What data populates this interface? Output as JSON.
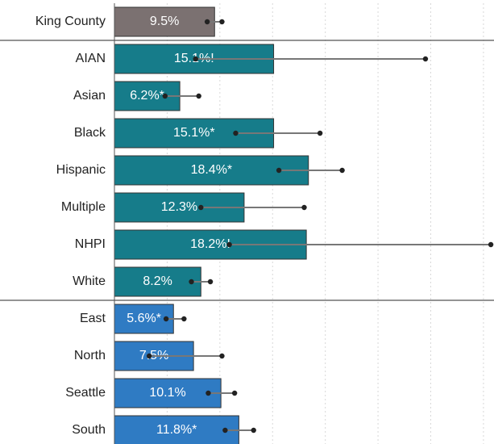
{
  "chart_data": {
    "type": "bar",
    "orientation": "horizontal",
    "xlim": [
      0,
      36
    ],
    "xticks": [
      5,
      10,
      15,
      20,
      25,
      30,
      35
    ],
    "grid": true,
    "groups": [
      {
        "color": "#7b7171",
        "categories": [
          "King County"
        ],
        "values": [
          9.5
        ],
        "value_labels": [
          "9.5%"
        ],
        "ci_low": [
          8.8
        ],
        "ci_high": [
          10.2
        ]
      },
      {
        "color": "#167c8a",
        "categories": [
          "AIAN",
          "Asian",
          "Black",
          "Hispanic",
          "Multiple",
          "NHPI",
          "White"
        ],
        "values": [
          15.1,
          6.2,
          15.1,
          18.4,
          12.3,
          18.2,
          8.2
        ],
        "value_labels": [
          "15.1%!",
          "6.2%*",
          "15.1%*",
          "18.4%*",
          "12.3%",
          "18.2%!",
          "8.2%"
        ],
        "ci_low": [
          7.7,
          4.8,
          11.5,
          15.6,
          8.2,
          10.9,
          7.3
        ],
        "ci_high": [
          29.5,
          8.0,
          19.5,
          21.6,
          18.0,
          35.7,
          9.1
        ]
      },
      {
        "color": "#2f7bc3",
        "categories": [
          "East",
          "North",
          "Seattle",
          "South"
        ],
        "values": [
          5.6,
          7.5,
          10.1,
          11.8
        ],
        "value_labels": [
          "5.6%*",
          "7.5%",
          "10.1%",
          "11.8%*"
        ],
        "ci_low": [
          4.9,
          3.3,
          8.9,
          10.5
        ],
        "ci_high": [
          6.6,
          10.2,
          11.4,
          13.2
        ]
      }
    ]
  }
}
